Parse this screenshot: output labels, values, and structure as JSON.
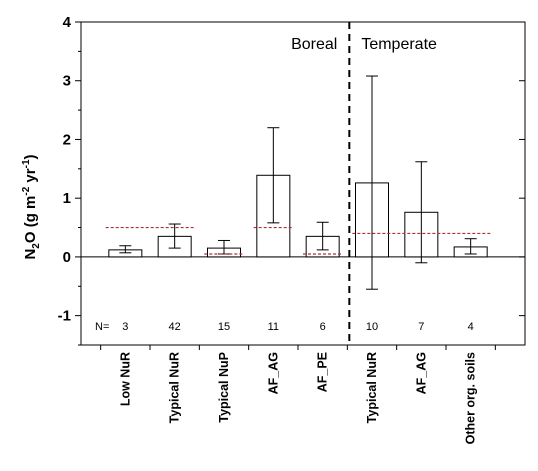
{
  "chart_data": {
    "type": "bar",
    "title": "",
    "ylim": [
      -1.5,
      4
    ],
    "yticks": [
      -1,
      0,
      1,
      2,
      3,
      4
    ],
    "ylabel": {
      "base": "N",
      "sub": "2",
      "mid": "O (g m",
      "sup1": "-2",
      "mid2": " yr",
      "sup2": "-1",
      "end": ")"
    },
    "regions": [
      "Boreal",
      "Temperate"
    ],
    "n_prefix": "N=",
    "categories": [
      "Low NuR",
      "Typical NuR",
      "Typical NuP",
      "AF_AG",
      "AF_PE",
      "Typical NuR",
      "AF_AG",
      "Other org. soils"
    ],
    "region_of_category": [
      "Boreal",
      "Boreal",
      "Boreal",
      "Boreal",
      "Boreal",
      "Temperate",
      "Temperate",
      "Temperate"
    ],
    "n": [
      "3",
      "42",
      "15",
      "11",
      "6",
      "10",
      "7",
      "4"
    ],
    "values": [
      0.12,
      0.35,
      0.15,
      1.39,
      0.35,
      1.26,
      0.76,
      0.17
    ],
    "error_low": [
      0.07,
      0.15,
      0.05,
      0.58,
      0.12,
      -0.55,
      -0.1,
      0.05
    ],
    "error_high": [
      0.19,
      0.56,
      0.28,
      2.2,
      0.59,
      3.08,
      1.62,
      0.31
    ],
    "reference_lines": [
      {
        "from_category": 0,
        "to_category": 1,
        "value": 0.5
      },
      {
        "from_category": 2,
        "to_category": 2,
        "value": 0.05
      },
      {
        "from_category": 3,
        "to_category": 3,
        "value": 0.5
      },
      {
        "from_category": 4,
        "to_category": 4,
        "value": 0.05
      },
      {
        "from_category": 5,
        "to_category": 7,
        "value": 0.4
      }
    ],
    "colors": {
      "bar_fill": "#ffffff",
      "bar_stroke": "#000000",
      "reference_line": "#b03030",
      "axis": "#000000"
    }
  }
}
